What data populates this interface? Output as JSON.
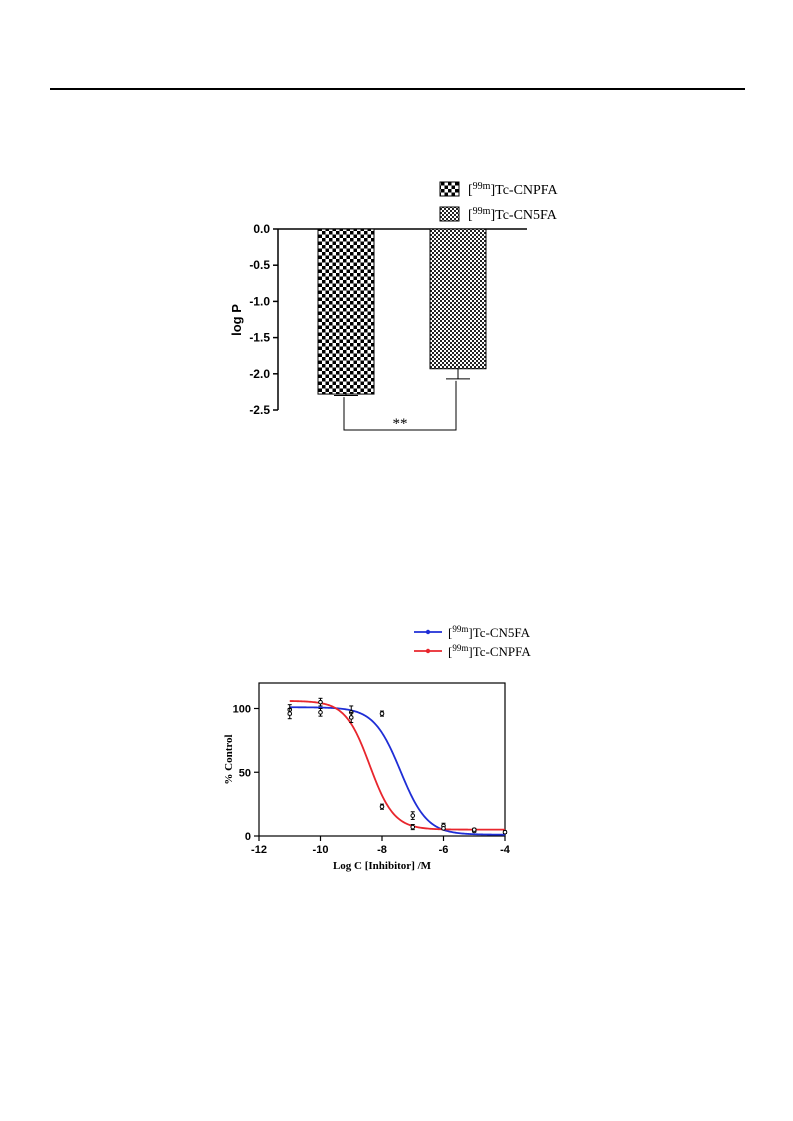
{
  "chart_data": [
    {
      "type": "bar",
      "ylabel": "log P",
      "ylim": [
        -2.5,
        0.0
      ],
      "yticks": [
        "0.0",
        "-0.5",
        "-1.0",
        "-1.5",
        "-2.0",
        "-2.5"
      ],
      "grid": false,
      "legend_position": "top-right",
      "series": [
        {
          "name": "[99mTc]Tc-CNPFA",
          "legend_sup": "99m",
          "legend_rest": "Tc-CNPFA",
          "value": -2.28,
          "error": 0.02,
          "pattern": "checker"
        },
        {
          "name": "[99mTc]Tc-CN5FA",
          "legend_sup": "99m",
          "legend_rest": "Tc-CN5FA",
          "value": -1.93,
          "error": 0.14,
          "pattern": "fine-checker"
        }
      ],
      "annotation": "**"
    },
    {
      "type": "line",
      "xlabel": "Log C [Inhibitor] /M",
      "ylabel": "% Control",
      "xlim": [
        -12,
        -4
      ],
      "ylim": [
        0,
        120
      ],
      "xticks": [
        "-12",
        "-10",
        "-8",
        "-6",
        "-4"
      ],
      "yticks": [
        "0",
        "50",
        "100"
      ],
      "grid": false,
      "legend_position": "top-right",
      "series": [
        {
          "name": "[99mTc]Tc-CN5FA",
          "legend_sup": "99m",
          "legend_rest": "Tc-CN5FA",
          "color": "#1f2ed6",
          "fit": {
            "top": 101,
            "bottom": 1,
            "logIC50": -7.4,
            "hill": 1.0
          },
          "points": [
            {
              "x": -11,
              "y": 99,
              "err": 4
            },
            {
              "x": -10,
              "y": 105,
              "err": 3
            },
            {
              "x": -9,
              "y": 97,
              "err": 5
            },
            {
              "x": -8,
              "y": 96,
              "err": 2
            },
            {
              "x": -7,
              "y": 16,
              "err": 3
            },
            {
              "x": -6,
              "y": 8,
              "err": 2
            },
            {
              "x": -5,
              "y": 4,
              "err": 1
            },
            {
              "x": -4,
              "y": 3,
              "err": 1
            }
          ]
        },
        {
          "name": "[99mTc]Tc-CNPFA",
          "legend_sup": "99m",
          "legend_rest": "Tc-CNPFA",
          "color": "#e8262d",
          "fit": {
            "top": 106,
            "bottom": 5,
            "logIC50": -8.4,
            "hill": 1.1
          },
          "points": [
            {
              "x": -11,
              "y": 96,
              "err": 4
            },
            {
              "x": -10,
              "y": 97,
              "err": 3
            },
            {
              "x": -9,
              "y": 93,
              "err": 4
            },
            {
              "x": -8,
              "y": 23,
              "err": 2
            },
            {
              "x": -7,
              "y": 7,
              "err": 2
            },
            {
              "x": -6,
              "y": 6,
              "err": 1
            },
            {
              "x": -5,
              "y": 5,
              "err": 1
            }
          ]
        }
      ]
    }
  ]
}
